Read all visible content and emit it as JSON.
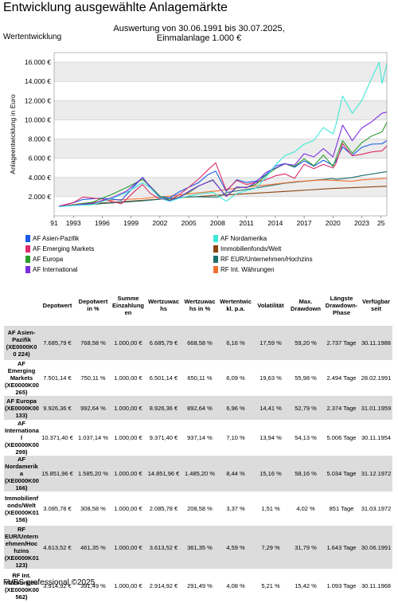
{
  "header": {
    "title": "Entwicklung ausgewählte Anlagemärkte",
    "subtitle_line1": "Auswertung von 30.06.1991 bis 30.07.2025,",
    "subtitle_line2": "Einmalanlage 1.000 €",
    "section_label": "Wertentwicklung"
  },
  "chart_data": {
    "type": "line",
    "ylabel": "Anlageentwicklung in Euro",
    "ylim": [
      0,
      17000
    ],
    "yticks": [
      "2.000 €",
      "4.000 €",
      "6.000 €",
      "8.000 €",
      "10.000 €",
      "12.000 €",
      "14.000 €",
      "16.000 €"
    ],
    "ytick_values": [
      2000,
      4000,
      6000,
      8000,
      10000,
      12000,
      14000,
      16000
    ],
    "xlim": [
      1991,
      2025.6
    ],
    "xticks": [
      "91",
      "1993",
      "1996",
      "1999",
      "2002",
      "2005",
      "2008",
      "2011",
      "2014",
      "2017",
      "2020",
      "2023",
      "25"
    ],
    "xtick_values": [
      1991,
      1993,
      1996,
      1999,
      2002,
      2005,
      2008,
      2011,
      2014,
      2017,
      2020,
      2023,
      2025
    ],
    "grid": true,
    "series": [
      {
        "name": "AF Asien-Pazifik",
        "color": "#1a5ce6",
        "x": [
          1991.5,
          1993,
          1994,
          1996,
          1998,
          1999.5,
          2000.2,
          2001,
          2002,
          2003,
          2004,
          2005,
          2006,
          2007,
          2007.8,
          2008.9,
          2010,
          2011,
          2012,
          2013,
          2014,
          2015,
          2016,
          2017,
          2018,
          2019,
          2020,
          2020.3,
          2021,
          2022,
          2023,
          2024,
          2025.1,
          2025.6
        ],
        "y": [
          1000,
          1300,
          1700,
          1800,
          1600,
          3200,
          3900,
          2900,
          2100,
          1900,
          2500,
          3000,
          3600,
          4300,
          4700,
          2500,
          3600,
          3400,
          3500,
          4200,
          5000,
          5300,
          4900,
          5900,
          5400,
          6000,
          5400,
          6000,
          7500,
          6500,
          6800,
          7200,
          7400,
          7686
        ]
      },
      {
        "name": "AF Emerging Markets",
        "color": "#e02a6b",
        "x": [
          1991.5,
          1993,
          1994,
          1996,
          1998,
          1999.5,
          2000.2,
          2001,
          2002,
          2003,
          2004,
          2005,
          2006,
          2007,
          2007.8,
          2008.9,
          2010,
          2011,
          2012,
          2013,
          2014,
          2015,
          2016,
          2017,
          2018,
          2019,
          2020,
          2020.3,
          2021,
          2022,
          2023,
          2024,
          2025.1,
          2025.6
        ],
        "y": [
          1000,
          1400,
          2000,
          1800,
          1300,
          2700,
          3300,
          2400,
          1800,
          1600,
          2200,
          2900,
          3700,
          4700,
          5300,
          2600,
          3800,
          3400,
          3500,
          3800,
          4200,
          4400,
          4100,
          5200,
          4700,
          5300,
          4800,
          5400,
          7200,
          6200,
          6300,
          6800,
          7000,
          7501
        ]
      },
      {
        "name": "AF Europa",
        "color": "#2a9d2a",
        "x": [
          1991.5,
          1993,
          1995,
          1997,
          1998.5,
          2000.2,
          2001,
          2002,
          2003,
          2004,
          2005,
          2006,
          2007.5,
          2008.9,
          2010,
          2011,
          2012,
          2013,
          2014,
          2015,
          2016,
          2017,
          2018,
          2019,
          2020,
          2020.3,
          2021,
          2022,
          2023,
          2024,
          2025.1,
          2025.6
        ],
        "y": [
          1000,
          1200,
          1400,
          2200,
          2800,
          3700,
          3000,
          2000,
          1600,
          2000,
          2500,
          3100,
          3800,
          2100,
          3000,
          3000,
          3300,
          4100,
          4700,
          5300,
          5000,
          5800,
          5200,
          6300,
          5300,
          6000,
          8000,
          6800,
          7800,
          8400,
          9200,
          9926
        ]
      },
      {
        "name": "AF International",
        "color": "#7b2ce0",
        "x": [
          1991.5,
          1993,
          1995,
          1997,
          1998.5,
          2000.2,
          2001,
          2002,
          2003,
          2004,
          2005,
          2006,
          2007.5,
          2008.9,
          2010,
          2011,
          2012,
          2013,
          2014,
          2015,
          2016,
          2017,
          2018,
          2019,
          2020,
          2020.3,
          2021,
          2022,
          2023,
          2024,
          2025.1,
          2025.6
        ],
        "y": [
          1000,
          1100,
          1300,
          1900,
          2600,
          4000,
          3100,
          2000,
          1600,
          2000,
          2500,
          3000,
          3600,
          2000,
          3000,
          2900,
          3400,
          4400,
          5200,
          5700,
          5500,
          6600,
          6200,
          7300,
          6400,
          7100,
          9000,
          7800,
          8800,
          9600,
          10300,
          10371
        ]
      },
      {
        "name": "AF Nordamerika",
        "color": "#3ee8d8",
        "x": [
          1991.5,
          1993,
          1995,
          1997,
          1998.5,
          2000.2,
          2001,
          2002,
          2003,
          2004,
          2005,
          2006,
          2007.5,
          2008.9,
          2010,
          2011,
          2012,
          2013,
          2014,
          2015,
          2016,
          2017,
          2018,
          2019,
          2020,
          2020.3,
          2021,
          2022,
          2023,
          2024,
          2024.8,
          2025.1,
          2025.6
        ],
        "y": [
          1000,
          1100,
          1200,
          1800,
          2400,
          3400,
          2800,
          1800,
          1500,
          1800,
          2000,
          2300,
          2500,
          1600,
          2400,
          2700,
          3000,
          4100,
          5200,
          6000,
          6400,
          7300,
          7500,
          9000,
          8200,
          9300,
          12500,
          11000,
          12300,
          14600,
          16600,
          14200,
          15852
        ]
      },
      {
        "name": "Immobilienfonds/Welt",
        "color": "#8b4513",
        "x": [
          1991.5,
          1995,
          2000,
          2005,
          2008,
          2010,
          2015,
          2020,
          2025.6
        ],
        "y": [
          1000,
          1280,
          1620,
          1950,
          2150,
          2250,
          2550,
          2850,
          3086
        ]
      },
      {
        "name": "RF EUR/Unternehmen/Hochzins",
        "color": "#1f6e6e",
        "x": [
          1991.5,
          1995,
          2000,
          2005,
          2008,
          2009,
          2012,
          2015,
          2018,
          2020,
          2020.3,
          2022,
          2023,
          2025.6
        ],
        "y": [
          1000,
          1200,
          1550,
          2000,
          1950,
          2450,
          2900,
          3400,
          3700,
          3900,
          3800,
          4000,
          4200,
          4614
        ]
      },
      {
        "name": "RF Int. Währungen",
        "color": "#f07030",
        "x": [
          1991.5,
          1994,
          1997,
          2000,
          2003,
          2006,
          2008,
          2010,
          2013,
          2016,
          2019,
          2022,
          2023,
          2025.6
        ],
        "y": [
          1000,
          1300,
          1650,
          1800,
          2050,
          2400,
          2600,
          2900,
          3200,
          3550,
          3750,
          3600,
          3750,
          3915
        ]
      }
    ]
  },
  "table": {
    "columns": [
      "Depotwert",
      "Depotwert in %",
      "Summe Einzahlungen",
      "Wertzuwachs",
      "Wertzuwachs in %",
      "Wertentwickl. p.a.",
      "Volatilität",
      "Max. Drawdown",
      "Längste Drawdown-Phase",
      "Verfügbar seit"
    ],
    "column_display": [
      "Depotwert",
      "Depotwert in %",
      "Summe Einzahlung en",
      "Wertzuwac hs",
      "Wertzuwac hs in %",
      "Wertentwic kl. p.a.",
      "Volatilität",
      "Max. Drawdown",
      "Längste Drawdown-Phase",
      "Verfügbar seit"
    ],
    "rows": [
      {
        "name": "AF Asien-Pazifik (XE0000K00224)",
        "name_display": "AF Asien-Pazifik (XE0000K0 0 224)",
        "values": [
          "7.685,79 €",
          "768,58 %",
          "1.000,00 €",
          "6.685,79 €",
          "668,58 %",
          "6,16 %",
          "17,59 %",
          "59,20 %",
          "2.737 Tage",
          "30.11.1988"
        ]
      },
      {
        "name": "AF Emerging Markets (XE0000K00265)",
        "name_display": "AF Emerging Markets (XE0000K00 265)",
        "values": [
          "7.501,14 €",
          "750,11 %",
          "1.000,00 €",
          "6.501,14 €",
          "650,11 %",
          "6,09 %",
          "19,63 %",
          "55,98 %",
          "2.494 Tage",
          "28.02.1991"
        ]
      },
      {
        "name": "AF Europa (XE0000K00133)",
        "name_display": "AF Europa (XE0000K00 133)",
        "values": [
          "9.926,36 €",
          "992,64 %",
          "1.000,00 €",
          "8.926,36 €",
          "892,64 %",
          "6,96 %",
          "14,41 %",
          "52,79 %",
          "2.374 Tage",
          "31.01.1959"
        ]
      },
      {
        "name": "AF International (XE0000K00299)",
        "name_display": "AF Internationa l (XE0000K00 299)",
        "values": [
          "10.371,40 €",
          "1.037,14 %",
          "1.000,00 €",
          "9.371,40 €",
          "937,14 %",
          "7,10 %",
          "13,94 %",
          "54,13 %",
          "5.006 Tage",
          "30.11.1954"
        ]
      },
      {
        "name": "AF Nordamerika (XE0000K00166)",
        "name_display": "AF Nordamerik a (XE0000K00 166)",
        "values": [
          "15.851,96 €",
          "1.585,20 %",
          "1.000,00 €",
          "14.851,96 €",
          "1.485,20 %",
          "8,44 %",
          "15,16 %",
          "58,16 %",
          "5.034 Tage",
          "31.12.1972"
        ]
      },
      {
        "name": "Immobilienfonds/Welt (XE0000K01156)",
        "name_display": "Immobilienf onds/Welt (XE0000K01 156)",
        "values": [
          "3.085,78 €",
          "308,58 %",
          "1.000,00 €",
          "2.085,78 €",
          "208,58 %",
          "3,37 %",
          "1,51 %",
          "4,02 %",
          "851 Tage",
          "31.03.1972"
        ]
      },
      {
        "name": "RF EUR/Unternehmen/Hochzins (XE0000K01123)",
        "name_display": "RF EUR/Untern ehmen/Hoc hzins (XE0000K01 123)",
        "values": [
          "4.613,52 €",
          "461,35 %",
          "1.000,00 €",
          "3.613,52 €",
          "361,35 %",
          "4,59 %",
          "7,29 %",
          "31,79 %",
          "1.643 Tage",
          "30.06.1991"
        ]
      },
      {
        "name": "RF Int. Währungen (XE0000K00562)",
        "name_display": "RF Int. Währungen (XE0000K00 562)",
        "values": [
          "3.914,92 €",
          "391,49 %",
          "1.000,00 €",
          "2.914,92 €",
          "291,49 %",
          "4,08 %",
          "5,21 %",
          "15,42 %",
          "1.093 Tage",
          "30.11.1968"
        ]
      }
    ]
  },
  "footer": {
    "text": "FVBS professional ©2025"
  }
}
